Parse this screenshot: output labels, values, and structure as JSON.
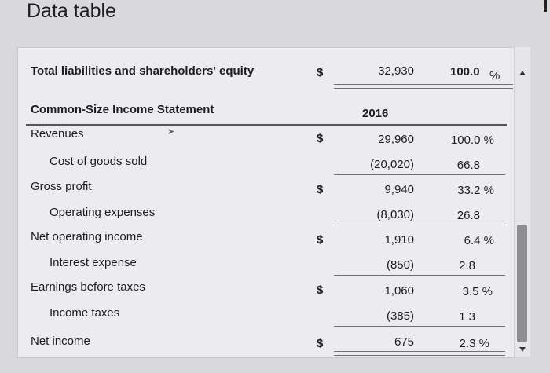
{
  "window": {
    "title": "Data table"
  },
  "top_row": {
    "label": "Total liabilities and shareholders' equity",
    "currency": "$",
    "value": "32,930",
    "percent": "100.0",
    "percent_sign": "%"
  },
  "income_statement": {
    "heading": "Common-Size Income Statement",
    "year": "2016",
    "rows": [
      {
        "label": "Revenues",
        "currency": "$",
        "value": "29,960",
        "percent": "100.0 %"
      },
      {
        "label": "Cost of goods sold",
        "currency": "",
        "value": "(20,020)",
        "percent": "66.8"
      },
      {
        "label": "Gross profit",
        "currency": "$",
        "value": "9,940",
        "percent": "33.2 %"
      },
      {
        "label": "Operating expenses",
        "currency": "",
        "value": "(8,030)",
        "percent": "26.8"
      },
      {
        "label": "Net operating income",
        "currency": "$",
        "value": "1,910",
        "percent": "6.4 %"
      },
      {
        "label": "Interest expense",
        "currency": "",
        "value": "(850)",
        "percent": "2.8"
      },
      {
        "label": "Earnings before taxes",
        "currency": "$",
        "value": "1,060",
        "percent": "3.5 %"
      },
      {
        "label": "Income taxes",
        "currency": "",
        "value": "(385)",
        "percent": "1.3"
      },
      {
        "label": "Net income",
        "currency": "$",
        "value": "675",
        "percent": "2.3 %"
      }
    ]
  },
  "colors": {
    "background": "#d9d9db",
    "panel": "#ececee",
    "scroll_thumb": "#8d8d92"
  }
}
